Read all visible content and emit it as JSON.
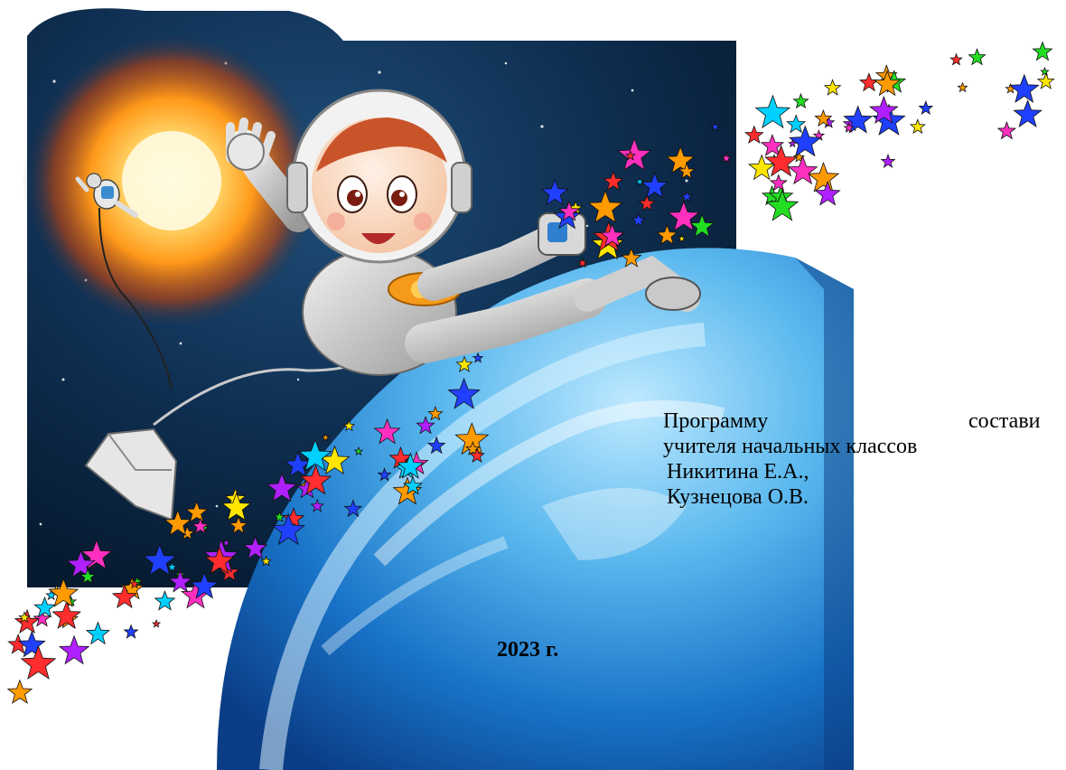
{
  "credits": {
    "line1_word1": "Программу",
    "line1_word2": "состави",
    "line2": "учителя начальных классов",
    "author1": "Никитина Е.А.,",
    "author2": "Кузнецова О.В."
  },
  "year": "2023 г.",
  "colors": {
    "space_dark": "#0b2240",
    "sun_core": "#fff4b0",
    "sun_glow": "#ff8a00",
    "earth_blue": "#1a7fd0",
    "earth_light": "#7fd0ff"
  },
  "illustration": {
    "subject": "cartoon-cosmonaut-over-earth",
    "icons": [
      "sun-icon",
      "small-astronaut-icon",
      "satellite-icon",
      "star-trail-icon"
    ]
  }
}
